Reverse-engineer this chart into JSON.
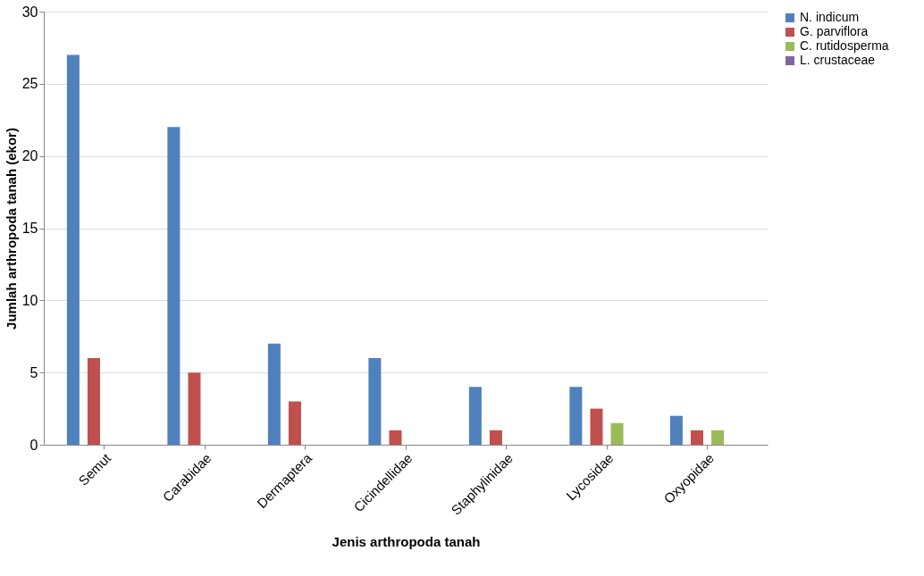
{
  "chart_data": {
    "type": "bar",
    "xlabel": "Jenis arthropoda tanah",
    "ylabel": "Jumlah arthropoda tanah (ekor)",
    "categories": [
      "Semut",
      "Carabidae",
      "Dermaptera",
      "Cicindellidae",
      "Staphylinidae",
      "Lycosidae",
      "Oxyopidae"
    ],
    "series": [
      {
        "name": "N. indicum",
        "color": "#4f81bd",
        "values": [
          27,
          22,
          7,
          6,
          4,
          4,
          2
        ]
      },
      {
        "name": "G. parviflora",
        "color": "#c0504d",
        "values": [
          6,
          5,
          3,
          1,
          1,
          2.5,
          1
        ]
      },
      {
        "name": "C. rutidosperma",
        "color": "#9bbb59",
        "values": [
          0,
          0,
          0,
          0,
          0,
          1.5,
          1
        ]
      },
      {
        "name": "L. crustaceae",
        "color": "#8064a2",
        "values": [
          0,
          0,
          0,
          0,
          0,
          0,
          0
        ]
      }
    ],
    "ylim": [
      0,
      30
    ],
    "yticks": [
      0,
      5,
      10,
      15,
      20,
      25,
      30
    ],
    "grid": "y",
    "legend": "right"
  }
}
